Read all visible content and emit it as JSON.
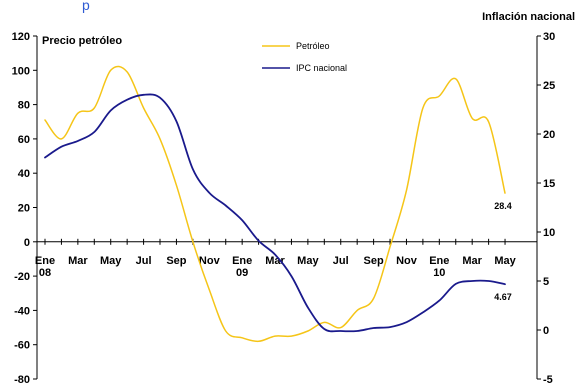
{
  "chart_data": {
    "type": "line",
    "title": "",
    "top_caption": "p",
    "ylabel_left": "Precio petróleo",
    "ylabel_right": "Inflación nacional",
    "y_left": {
      "min": -80,
      "max": 120,
      "ticks": [
        120,
        100,
        80,
        60,
        40,
        20,
        0,
        -20,
        -40,
        -60,
        -80
      ]
    },
    "y_right": {
      "min": -5,
      "max": 30,
      "ticks": [
        30,
        25,
        20,
        15,
        10,
        5,
        0,
        -5
      ]
    },
    "x_tick_labels": [
      {
        "month": 0,
        "lines": [
          "Ene",
          "08"
        ]
      },
      {
        "month": 2,
        "lines": [
          "Mar"
        ]
      },
      {
        "month": 4,
        "lines": [
          "May"
        ]
      },
      {
        "month": 6,
        "lines": [
          "Jul"
        ]
      },
      {
        "month": 8,
        "lines": [
          "Sep"
        ]
      },
      {
        "month": 10,
        "lines": [
          "Nov"
        ]
      },
      {
        "month": 12,
        "lines": [
          "Ene",
          "09"
        ]
      },
      {
        "month": 14,
        "lines": [
          "Mar"
        ]
      },
      {
        "month": 16,
        "lines": [
          "May"
        ]
      },
      {
        "month": 18,
        "lines": [
          "Jul"
        ]
      },
      {
        "month": 20,
        "lines": [
          "Sep"
        ]
      },
      {
        "month": 22,
        "lines": [
          "Nov"
        ]
      },
      {
        "month": 24,
        "lines": [
          "Ene",
          "10"
        ]
      },
      {
        "month": 26,
        "lines": [
          "Mar"
        ]
      },
      {
        "month": 28,
        "lines": [
          "May"
        ]
      }
    ],
    "grid": false,
    "legend_position": "top-center",
    "series": [
      {
        "name": "Petróleo",
        "axis": "left",
        "color": "#f5c518",
        "x": [
          0,
          1,
          2,
          3,
          4,
          5,
          6,
          7,
          8,
          9,
          10,
          11,
          12,
          13,
          14,
          15,
          16,
          17,
          18,
          19,
          20,
          21,
          22,
          23,
          24,
          25,
          26,
          27,
          28
        ],
        "values": [
          71,
          60,
          75,
          78,
          100,
          99,
          78,
          60,
          33,
          0,
          -28,
          -52,
          -56,
          -58,
          -55,
          -55,
          -52,
          -47,
          -50,
          -40,
          -33,
          -3,
          30,
          78,
          85,
          95,
          72,
          70,
          28.4
        ]
      },
      {
        "name": "IPC nacional",
        "axis": "right",
        "color": "#1a1a8c",
        "x": [
          0,
          1,
          2,
          3,
          4,
          5,
          6,
          7,
          8,
          9,
          10,
          11,
          12,
          13,
          14,
          15,
          16,
          17,
          18,
          19,
          20,
          21,
          22,
          23,
          24,
          25,
          26,
          27,
          28
        ],
        "values": [
          17.6,
          18.7,
          19.3,
          20.2,
          22.4,
          23.5,
          24,
          23.7,
          21.3,
          16.4,
          14,
          12.7,
          11.2,
          9.1,
          7.7,
          5.5,
          2.3,
          0.1,
          -0.1,
          -0.1,
          0.2,
          0.3,
          0.8,
          1.8,
          3.0,
          4.7,
          5.0,
          5.0,
          4.67
        ]
      }
    ],
    "data_labels": [
      {
        "series": "Petróleo",
        "text": "28.4"
      },
      {
        "series": "IPC nacional",
        "text": "4.67"
      }
    ]
  }
}
